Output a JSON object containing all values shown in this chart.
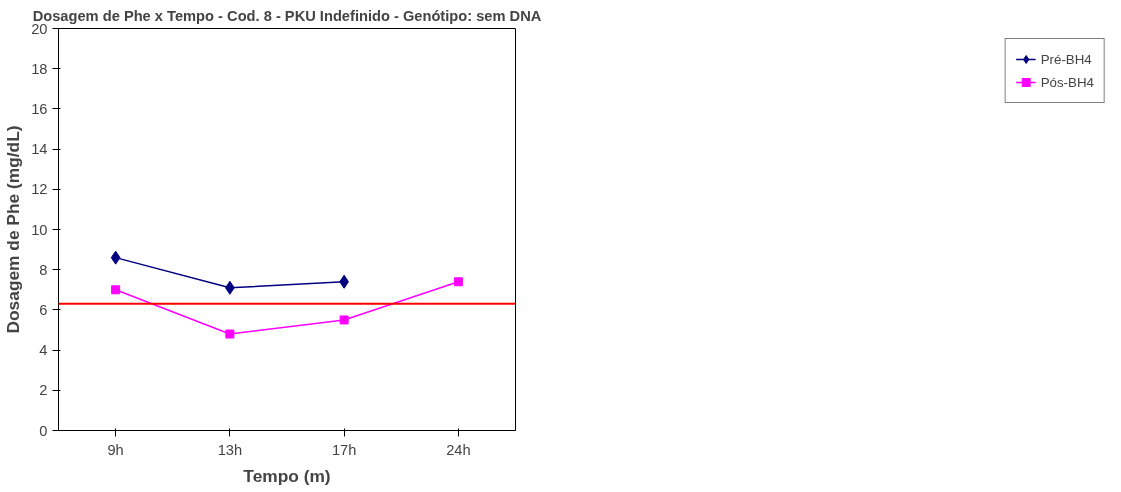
{
  "chart_data": {
    "type": "line",
    "title": "Dosagem de Phe x Tempo - Cod. 8 - PKU Indefinido - Genótipo: sem DNA",
    "xlabel": "Tempo (m)",
    "ylabel": "Dosagem de Phe (mg/dL)",
    "categories": [
      "9h",
      "13h",
      "17h",
      "24h"
    ],
    "series": [
      {
        "name": "Pré-BH4",
        "color": "#000080",
        "marker": "diamond",
        "values": [
          8.6,
          7.1,
          7.4,
          null
        ]
      },
      {
        "name": "Pós-BH4",
        "color": "#ff00ff",
        "marker": "square",
        "values": [
          7.0,
          4.8,
          5.5,
          7.4
        ]
      }
    ],
    "ylim": [
      0,
      20
    ],
    "yticks": [
      0,
      2,
      4,
      6,
      8,
      10,
      12,
      14,
      16,
      18,
      20
    ],
    "ref_lines": [
      {
        "axis": "y",
        "value": 6.3,
        "color": "#ff0000"
      }
    ],
    "grid": false,
    "legend": "right"
  }
}
